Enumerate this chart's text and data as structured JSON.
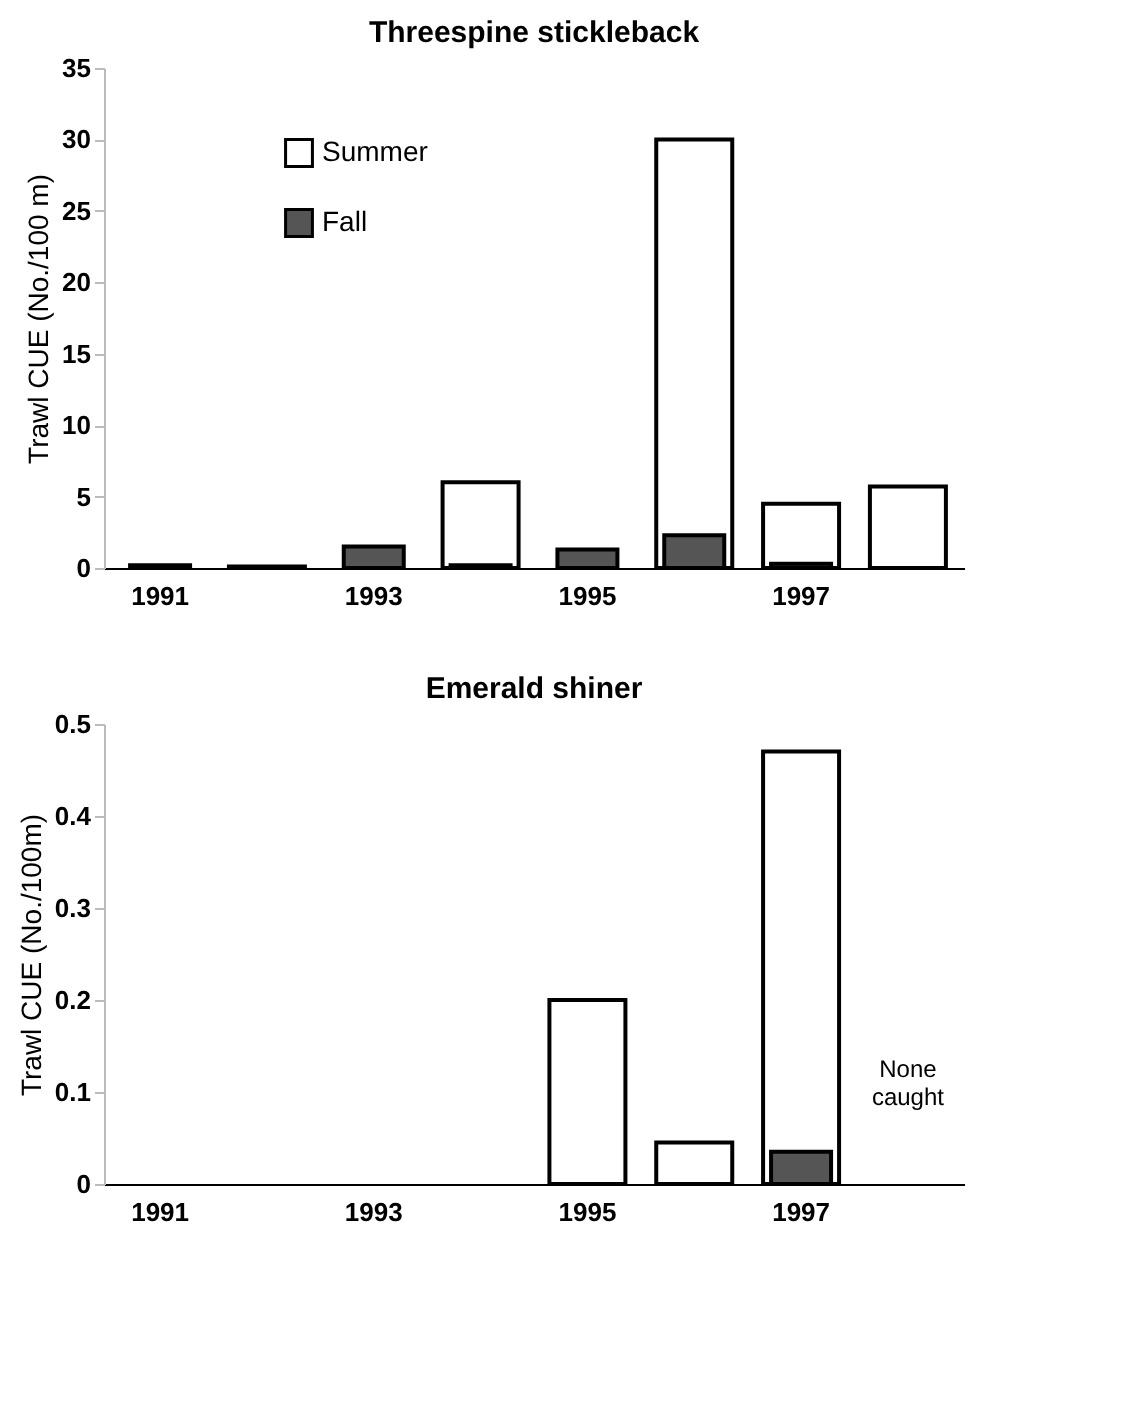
{
  "chart_data": [
    {
      "type": "bar",
      "title": "Threespine stickleback",
      "ylabel": "Trawl CUE (No./100 m)",
      "categories": [
        "1991",
        null,
        "1993",
        null,
        "1995",
        null,
        "1997",
        null
      ],
      "series": [
        {
          "name": "Summer",
          "color": "#ffffff",
          "values": [
            null,
            0.1,
            null,
            6,
            null,
            30,
            4.5,
            5.7
          ]
        },
        {
          "name": "Fall",
          "color": "#555555",
          "values": [
            0.2,
            null,
            1.5,
            0.2,
            1.3,
            2.3,
            0.3,
            null
          ]
        }
      ],
      "ylim": [
        0,
        35
      ],
      "yticks": [
        0,
        5,
        10,
        15,
        20,
        25,
        30,
        35
      ],
      "grid": false,
      "legend": "top left"
    },
    {
      "type": "bar",
      "title": "Emerald shiner",
      "ylabel": "Trawl CUE (No./100m)",
      "categories": [
        "1991",
        null,
        "1993",
        null,
        "1995",
        null,
        "1997",
        null
      ],
      "series": [
        {
          "color": "#ffffff",
          "values": [
            null,
            null,
            null,
            null,
            0.2,
            0.045,
            0.47,
            null
          ]
        },
        {
          "color": "#555555",
          "values": [
            null,
            null,
            null,
            null,
            null,
            null,
            0.035,
            null
          ]
        }
      ],
      "ylim": [
        0,
        0.5
      ],
      "yticks": [
        0,
        0.1,
        0.2,
        0.3,
        0.4,
        0.5
      ],
      "grid": false,
      "legend": false,
      "annotations": [
        "None caught"
      ]
    }
  ]
}
